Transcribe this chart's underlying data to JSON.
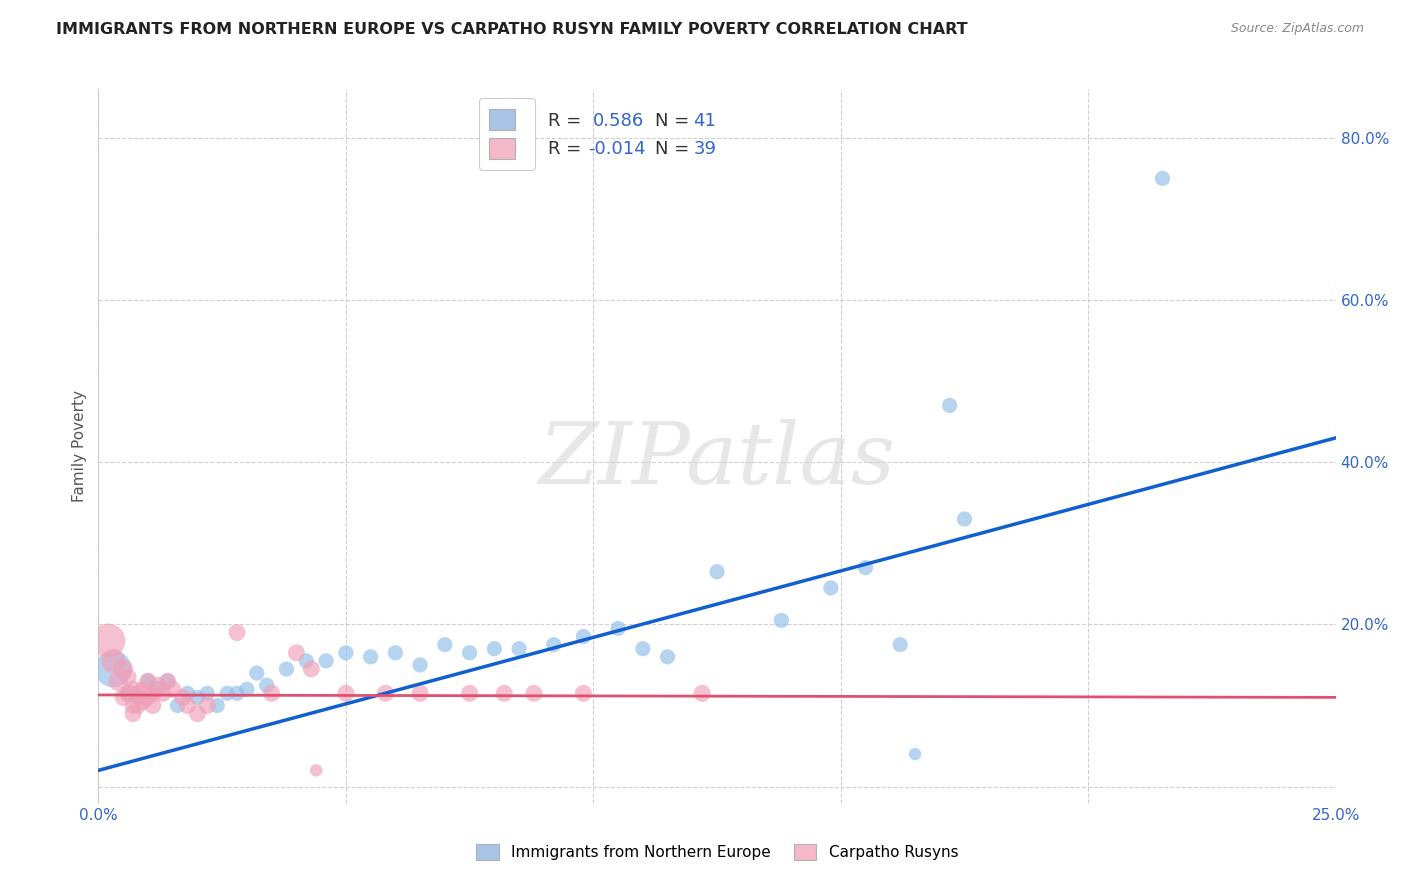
{
  "title": "IMMIGRANTS FROM NORTHERN EUROPE VS CARPATHO RUSYN FAMILY POVERTY CORRELATION CHART",
  "source": "Source: ZipAtlas.com",
  "ylabel": "Family Poverty",
  "xlim": [
    0.0,
    0.25
  ],
  "ylim": [
    -0.02,
    0.86
  ],
  "x_ticks": [
    0.0,
    0.05,
    0.1,
    0.15,
    0.2,
    0.25
  ],
  "y_ticks": [
    0.0,
    0.2,
    0.4,
    0.6,
    0.8
  ],
  "y_tick_labels": [
    "",
    "20.0%",
    "40.0%",
    "60.0%",
    "80.0%"
  ],
  "legend_color1": "#aac4e8",
  "legend_color2": "#f4b8c8",
  "watermark": "ZIPatlas",
  "blue_color": "#90bce8",
  "pink_color": "#f0a0b8",
  "line_blue": "#1060d0",
  "line_pink": "#e05070",
  "grid_color": "#d0d0d0",
  "blue_scatter": [
    [
      0.003,
      0.145
    ],
    [
      0.006,
      0.115
    ],
    [
      0.008,
      0.11
    ],
    [
      0.01,
      0.13
    ],
    [
      0.012,
      0.12
    ],
    [
      0.014,
      0.13
    ],
    [
      0.016,
      0.1
    ],
    [
      0.018,
      0.115
    ],
    [
      0.02,
      0.11
    ],
    [
      0.022,
      0.115
    ],
    [
      0.024,
      0.1
    ],
    [
      0.026,
      0.115
    ],
    [
      0.028,
      0.115
    ],
    [
      0.03,
      0.12
    ],
    [
      0.032,
      0.14
    ],
    [
      0.034,
      0.125
    ],
    [
      0.038,
      0.145
    ],
    [
      0.042,
      0.155
    ],
    [
      0.046,
      0.155
    ],
    [
      0.05,
      0.165
    ],
    [
      0.055,
      0.16
    ],
    [
      0.06,
      0.165
    ],
    [
      0.065,
      0.15
    ],
    [
      0.07,
      0.175
    ],
    [
      0.075,
      0.165
    ],
    [
      0.08,
      0.17
    ],
    [
      0.085,
      0.17
    ],
    [
      0.092,
      0.175
    ],
    [
      0.098,
      0.185
    ],
    [
      0.105,
      0.195
    ],
    [
      0.11,
      0.17
    ],
    [
      0.115,
      0.16
    ],
    [
      0.125,
      0.265
    ],
    [
      0.138,
      0.205
    ],
    [
      0.148,
      0.245
    ],
    [
      0.155,
      0.27
    ],
    [
      0.162,
      0.175
    ],
    [
      0.165,
      0.04
    ],
    [
      0.172,
      0.47
    ],
    [
      0.175,
      0.33
    ],
    [
      0.215,
      0.75
    ]
  ],
  "blue_sizes": [
    700,
    150,
    120,
    120,
    150,
    120,
    120,
    120,
    120,
    120,
    120,
    120,
    120,
    120,
    120,
    120,
    120,
    120,
    120,
    120,
    120,
    120,
    120,
    120,
    120,
    120,
    120,
    120,
    120,
    120,
    120,
    120,
    120,
    120,
    120,
    120,
    120,
    80,
    120,
    120,
    120
  ],
  "pink_scatter": [
    [
      0.002,
      0.18
    ],
    [
      0.003,
      0.155
    ],
    [
      0.004,
      0.13
    ],
    [
      0.005,
      0.145
    ],
    [
      0.005,
      0.11
    ],
    [
      0.006,
      0.135
    ],
    [
      0.006,
      0.115
    ],
    [
      0.007,
      0.12
    ],
    [
      0.007,
      0.1
    ],
    [
      0.007,
      0.09
    ],
    [
      0.008,
      0.115
    ],
    [
      0.008,
      0.1
    ],
    [
      0.009,
      0.12
    ],
    [
      0.009,
      0.105
    ],
    [
      0.01,
      0.13
    ],
    [
      0.01,
      0.11
    ],
    [
      0.011,
      0.115
    ],
    [
      0.011,
      0.1
    ],
    [
      0.012,
      0.125
    ],
    [
      0.013,
      0.115
    ],
    [
      0.014,
      0.13
    ],
    [
      0.015,
      0.12
    ],
    [
      0.017,
      0.11
    ],
    [
      0.018,
      0.1
    ],
    [
      0.02,
      0.09
    ],
    [
      0.022,
      0.1
    ],
    [
      0.028,
      0.19
    ],
    [
      0.035,
      0.115
    ],
    [
      0.04,
      0.165
    ],
    [
      0.043,
      0.145
    ],
    [
      0.044,
      0.02
    ],
    [
      0.05,
      0.115
    ],
    [
      0.058,
      0.115
    ],
    [
      0.065,
      0.115
    ],
    [
      0.075,
      0.115
    ],
    [
      0.082,
      0.115
    ],
    [
      0.088,
      0.115
    ],
    [
      0.098,
      0.115
    ],
    [
      0.122,
      0.115
    ]
  ],
  "pink_sizes": [
    600,
    300,
    200,
    200,
    150,
    150,
    150,
    150,
    150,
    150,
    150,
    150,
    150,
    150,
    150,
    150,
    150,
    150,
    150,
    150,
    150,
    150,
    150,
    150,
    150,
    150,
    150,
    150,
    150,
    150,
    80,
    150,
    150,
    150,
    150,
    150,
    150,
    150,
    150
  ],
  "blue_line_x": [
    0.0,
    0.25
  ],
  "blue_line_y": [
    0.02,
    0.43
  ],
  "pink_line_x": [
    0.0,
    0.25
  ],
  "pink_line_y": [
    0.113,
    0.11
  ],
  "legend_labels": [
    "Immigrants from Northern Europe",
    "Carpatho Rusyns"
  ]
}
